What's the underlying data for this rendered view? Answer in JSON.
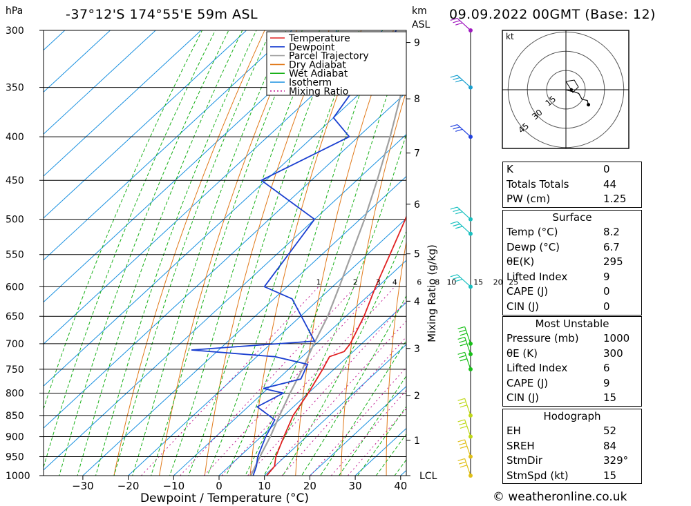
{
  "header": {
    "location": "-37°12'S 174°55'E 59m ASL",
    "datetime": "09.09.2022 00GMT (Base: 12)",
    "hpa_unit": "hPa",
    "km_unit": "km",
    "asl_label": "ASL",
    "kt_label": "kt"
  },
  "colors": {
    "temperature": "#e02020",
    "dewpoint": "#1a3fd0",
    "parcel": "#a0a0a0",
    "dry_adiabat": "#e07818",
    "wet_adiabat": "#18b018",
    "isotherm": "#1890e0",
    "mixing_ratio": "#c01890",
    "wind_marker_colors": [
      "#a018c0",
      "#18a0d0",
      "#2040e0",
      "#18c0c0",
      "#18c018",
      "#c0d818",
      "#e0c018"
    ]
  },
  "chart_data": {
    "type": "skew-t",
    "xlabel": "Dewpoint / Temperature (°C)",
    "ylabel_right": "Mixing Ratio (g/kg)",
    "x_ticks": [
      -30,
      -20,
      -10,
      0,
      10,
      20,
      30,
      40
    ],
    "pressure_levels": [
      300,
      350,
      400,
      450,
      500,
      550,
      600,
      650,
      700,
      750,
      800,
      850,
      900,
      950,
      1000
    ],
    "km_ticks": [
      {
        "label": "9",
        "p": 310
      },
      {
        "label": "8",
        "p": 361
      },
      {
        "label": "7",
        "p": 418
      },
      {
        "label": "6",
        "p": 480
      },
      {
        "label": "5",
        "p": 549
      },
      {
        "label": "4",
        "p": 624
      },
      {
        "label": "3",
        "p": 709
      },
      {
        "label": "2",
        "p": 805
      },
      {
        "label": "1",
        "p": 909
      },
      {
        "label": "LCL",
        "p": 1000
      }
    ],
    "mixing_ratio_labels": [
      "1",
      "2",
      "3",
      "4",
      "6",
      "8",
      "10",
      "15",
      "20",
      "25"
    ],
    "legend": [
      "Temperature",
      "Dewpoint",
      "Parcel Trajectory",
      "Dry Adiabat",
      "Wet Adiabat",
      "Isotherm",
      "Mixing Ratio"
    ],
    "temperature": [
      {
        "p": 1000,
        "t": 10.5
      },
      {
        "p": 975,
        "t": 10.0
      },
      {
        "p": 950,
        "t": 8.0
      },
      {
        "p": 900,
        "t": 5.0
      },
      {
        "p": 850,
        "t": 2.0
      },
      {
        "p": 800,
        "t": 0.0
      },
      {
        "p": 750,
        "t": -2.5
      },
      {
        "p": 725,
        "t": -4.0
      },
      {
        "p": 715,
        "t": -2.0
      },
      {
        "p": 700,
        "t": -2.5
      },
      {
        "p": 650,
        "t": -6.0
      },
      {
        "p": 600,
        "t": -10.5
      },
      {
        "p": 550,
        "t": -15.0
      },
      {
        "p": 500,
        "t": -20.0
      },
      {
        "p": 450,
        "t": -26.0
      },
      {
        "p": 400,
        "t": -33.0
      },
      {
        "p": 375,
        "t": -35.0
      },
      {
        "p": 350,
        "t": -39.0
      },
      {
        "p": 300,
        "t": -47.0
      }
    ],
    "dewpoint": [
      {
        "p": 1000,
        "t": 7.5
      },
      {
        "p": 975,
        "t": 6.0
      },
      {
        "p": 950,
        "t": 4.0
      },
      {
        "p": 900,
        "t": 1.0
      },
      {
        "p": 860,
        "t": -1.0
      },
      {
        "p": 830,
        "t": -8.0
      },
      {
        "p": 800,
        "t": -5.5
      },
      {
        "p": 790,
        "t": -11.0
      },
      {
        "p": 770,
        "t": -5.0
      },
      {
        "p": 740,
        "t": -7.0
      },
      {
        "p": 725,
        "t": -16.0
      },
      {
        "p": 712,
        "t": -36.0
      },
      {
        "p": 695,
        "t": -11.0
      },
      {
        "p": 620,
        "t": -26.0
      },
      {
        "p": 600,
        "t": -35.0
      },
      {
        "p": 500,
        "t": -40.0
      },
      {
        "p": 450,
        "t": -61.0
      },
      {
        "p": 400,
        "t": -52.0
      },
      {
        "p": 380,
        "t": -60.0
      },
      {
        "p": 300,
        "t": -67.0
      }
    ],
    "parcel": [
      {
        "p": 1000,
        "t": 7.0
      },
      {
        "p": 950,
        "t": 4.5
      },
      {
        "p": 900,
        "t": 2.0
      },
      {
        "p": 850,
        "t": -1.0
      },
      {
        "p": 800,
        "t": -4.0
      },
      {
        "p": 750,
        "t": -7.0
      },
      {
        "p": 700,
        "t": -10.5
      },
      {
        "p": 650,
        "t": -14.0
      },
      {
        "p": 600,
        "t": -18.5
      },
      {
        "p": 550,
        "t": -23.5
      },
      {
        "p": 500,
        "t": -29.0
      },
      {
        "p": 450,
        "t": -35.5
      },
      {
        "p": 400,
        "t": -43.0
      },
      {
        "p": 350,
        "t": -52.0
      },
      {
        "p": 300,
        "t": -62.0
      }
    ],
    "hodograph": {
      "rings": [
        "15",
        "30",
        "45"
      ],
      "trace": [
        [
          0.0,
          0.0
        ],
        [
          5.0,
          -1.5
        ],
        [
          8.0,
          -2.0
        ],
        [
          12.0,
          -3.5
        ],
        [
          15.0,
          -9.0
        ],
        [
          20.0,
          -10.0
        ],
        [
          21.0,
          -14.0
        ]
      ],
      "storm_motion_dir": 329,
      "storm_motion_kt": 15
    },
    "wind_levels": [
      300,
      350,
      400,
      500,
      520,
      600,
      700,
      720,
      750,
      850,
      900,
      950,
      1000
    ]
  },
  "indices": {
    "rows": [
      {
        "label": "K",
        "value": "0"
      },
      {
        "label": "Totals Totals",
        "value": "44"
      },
      {
        "label": "PW (cm)",
        "value": "1.25"
      }
    ]
  },
  "surface": {
    "title": "Surface",
    "rows": [
      {
        "label": "Temp (°C)",
        "value": "8.2"
      },
      {
        "label": "Dewp (°C)",
        "value": "6.7"
      },
      {
        "label": "θE(K)",
        "value": "295"
      },
      {
        "label": "Lifted Index",
        "value": "9"
      },
      {
        "label": "CAPE (J)",
        "value": "0"
      },
      {
        "label": "CIN (J)",
        "value": "0"
      }
    ]
  },
  "most_unstable": {
    "title": "Most Unstable",
    "rows": [
      {
        "label": "Pressure (mb)",
        "value": "1000"
      },
      {
        "label": "θE (K)",
        "value": "300"
      },
      {
        "label": "Lifted Index",
        "value": "6"
      },
      {
        "label": "CAPE (J)",
        "value": "9"
      },
      {
        "label": "CIN (J)",
        "value": "15"
      }
    ]
  },
  "hodograph_params": {
    "title": "Hodograph",
    "rows": [
      {
        "label": "EH",
        "value": "52"
      },
      {
        "label": "SREH",
        "value": "84"
      },
      {
        "label": "StmDir",
        "value": "329°"
      },
      {
        "label": "StmSpd (kt)",
        "value": "15"
      }
    ]
  },
  "footer": {
    "copyright": "© weatheronline.co.uk"
  }
}
